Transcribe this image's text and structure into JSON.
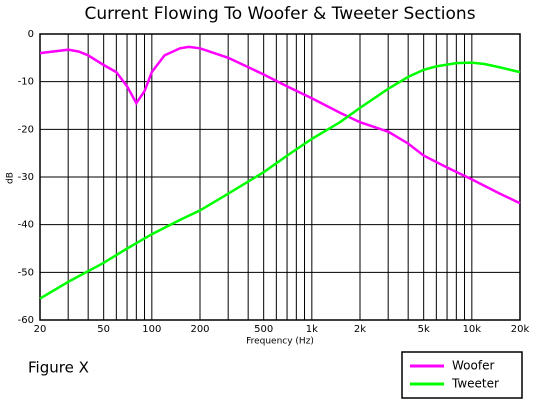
{
  "chart_data": {
    "type": "line",
    "title": "Current Flowing To Woofer & Tweeter Sections",
    "xlabel": "Frequency (Hz)",
    "ylabel": "dB",
    "annotation": "Figure  X",
    "xscale": "log",
    "xlim": [
      20,
      20000
    ],
    "ylim": [
      -60,
      0
    ],
    "xticks": [
      20,
      50,
      100,
      200,
      500,
      {
        "value": 1000,
        "label": "1k"
      },
      {
        "value": 2000,
        "label": "2k"
      },
      {
        "value": 5000,
        "label": "5k"
      },
      {
        "value": 10000,
        "label": "10k"
      },
      {
        "value": 20000,
        "label": "20k"
      }
    ],
    "xgrid_minor": [
      30,
      40,
      60,
      70,
      80,
      90,
      300,
      400,
      600,
      700,
      800,
      900,
      3000,
      4000,
      6000,
      7000,
      8000,
      9000
    ],
    "yticks": [
      0,
      -10,
      -20,
      -30,
      -40,
      -50,
      -60
    ],
    "grid": true,
    "legend": "bottom-right",
    "series": [
      {
        "name": "Woofer",
        "color": "#ff00ff",
        "x": [
          20,
          25,
          30,
          35,
          40,
          50,
          60,
          70,
          80,
          90,
          100,
          120,
          150,
          170,
          200,
          300,
          500,
          700,
          1000,
          1500,
          2000,
          3000,
          4000,
          5000,
          7000,
          10000,
          15000,
          20000
        ],
        "values": [
          -4,
          -3.6,
          -3.3,
          -3.7,
          -4.5,
          -6.5,
          -8,
          -11,
          -14.5,
          -12,
          -8,
          -4.5,
          -3,
          -2.7,
          -3,
          -5,
          -8.5,
          -11,
          -13.5,
          -16.5,
          -18.5,
          -20.5,
          -23,
          -25.5,
          -28,
          -30.5,
          -33.5,
          -35.5
        ]
      },
      {
        "name": "Tweeter",
        "color": "#00ff00",
        "x": [
          20,
          30,
          50,
          70,
          100,
          150,
          200,
          300,
          500,
          700,
          1000,
          1500,
          2000,
          3000,
          4000,
          5000,
          6000,
          8000,
          10000,
          12000,
          15000,
          20000
        ],
        "values": [
          -55.5,
          -52,
          -48,
          -45,
          -42,
          -39,
          -37,
          -33.5,
          -29,
          -25.5,
          -22,
          -18.5,
          -15.5,
          -11.5,
          -9,
          -7.5,
          -6.8,
          -6.1,
          -6,
          -6.3,
          -7,
          -8
        ]
      }
    ]
  }
}
